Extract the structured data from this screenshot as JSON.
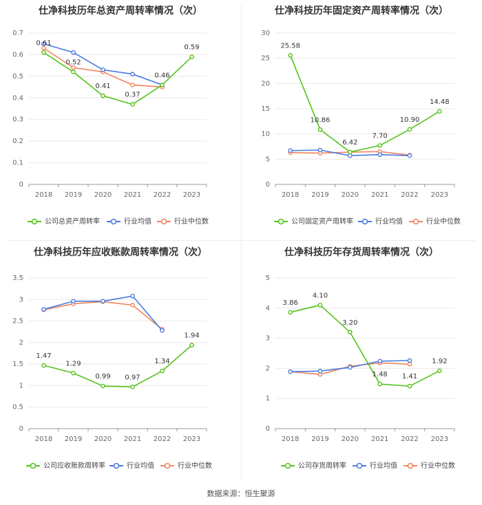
{
  "colors": {
    "company": "#52c41a",
    "avg": "#4a7be0",
    "median": "#f0845c",
    "grid": "#e8e8e8",
    "axis": "#999999",
    "text": "#666666"
  },
  "source": "数据来源：恒生聚源",
  "chart_data": [
    {
      "type": "line",
      "title": "仕净科技历年总资产周转率情况（次）",
      "categories": [
        "2018",
        "2019",
        "2020",
        "2021",
        "2022",
        "2023"
      ],
      "ylim": [
        0,
        0.7
      ],
      "yticks": [
        "0",
        "0.1",
        "0.2",
        "0.3",
        "0.4",
        "0.5",
        "0.6",
        "0.7"
      ],
      "series": [
        {
          "name": "公司总资产周转率",
          "values": [
            0.61,
            0.52,
            0.41,
            0.37,
            0.46,
            0.59
          ],
          "labels": [
            "0.61",
            "0.52",
            "0.41",
            "0.37",
            "0.46",
            "0.59"
          ]
        },
        {
          "name": "行业均值",
          "values": [
            0.65,
            0.61,
            0.53,
            0.51,
            0.46,
            null
          ]
        },
        {
          "name": "行业中位数",
          "values": [
            0.63,
            0.54,
            0.52,
            0.46,
            0.45,
            null
          ]
        }
      ]
    },
    {
      "type": "line",
      "title": "仕净科技历年固定资产周转率情况（次）",
      "categories": [
        "2018",
        "2019",
        "2020",
        "2021",
        "2022",
        "2023"
      ],
      "ylim": [
        0,
        30
      ],
      "yticks": [
        "0",
        "5",
        "10",
        "15",
        "20",
        "25",
        "30"
      ],
      "series": [
        {
          "name": "公司固定资产周转率",
          "values": [
            25.58,
            10.86,
            6.42,
            7.7,
            10.9,
            14.48
          ],
          "labels": [
            "25.58",
            "10.86",
            "6.42",
            "7.70",
            "10.90",
            "14.48"
          ]
        },
        {
          "name": "行业均值",
          "values": [
            6.7,
            6.8,
            5.7,
            5.9,
            5.7,
            null
          ]
        },
        {
          "name": "行业中位数",
          "values": [
            6.3,
            6.2,
            6.4,
            6.5,
            5.8,
            null
          ]
        }
      ]
    },
    {
      "type": "line",
      "title": "仕净科技历年应收账款周转率情况（次）",
      "categories": [
        "2018",
        "2019",
        "2020",
        "2021",
        "2022",
        "2023"
      ],
      "ylim": [
        0,
        3.5
      ],
      "yticks": [
        "0",
        "0.5",
        "1",
        "1.5",
        "2",
        "2.5",
        "3",
        "3.5"
      ],
      "series": [
        {
          "name": "公司应收账款周转率",
          "values": [
            1.47,
            1.29,
            0.99,
            0.97,
            1.34,
            1.94
          ],
          "labels": [
            "1.47",
            "1.29",
            "0.99",
            "0.97",
            "1.34",
            "1.94"
          ]
        },
        {
          "name": "行业均值",
          "values": [
            2.77,
            2.96,
            2.96,
            3.08,
            2.28,
            null
          ]
        },
        {
          "name": "行业中位数",
          "values": [
            2.76,
            2.9,
            2.95,
            2.87,
            2.31,
            null
          ]
        }
      ]
    },
    {
      "type": "line",
      "title": "仕净科技历年存货周转率情况（次）",
      "categories": [
        "2018",
        "2019",
        "2020",
        "2021",
        "2022",
        "2023"
      ],
      "ylim": [
        0,
        5
      ],
      "yticks": [
        "0",
        "1",
        "2",
        "3",
        "4",
        "5"
      ],
      "series": [
        {
          "name": "公司存货周转率",
          "values": [
            3.86,
            4.1,
            3.2,
            1.48,
            1.41,
            1.92
          ],
          "labels": [
            "3.86",
            "4.10",
            "3.20",
            "1.48",
            "1.41",
            "1.92"
          ]
        },
        {
          "name": "行业均值",
          "values": [
            1.89,
            1.91,
            2.03,
            2.24,
            2.26,
            null
          ]
        },
        {
          "name": "行业中位数",
          "values": [
            1.89,
            1.8,
            2.07,
            2.18,
            2.14,
            null
          ]
        }
      ]
    }
  ]
}
